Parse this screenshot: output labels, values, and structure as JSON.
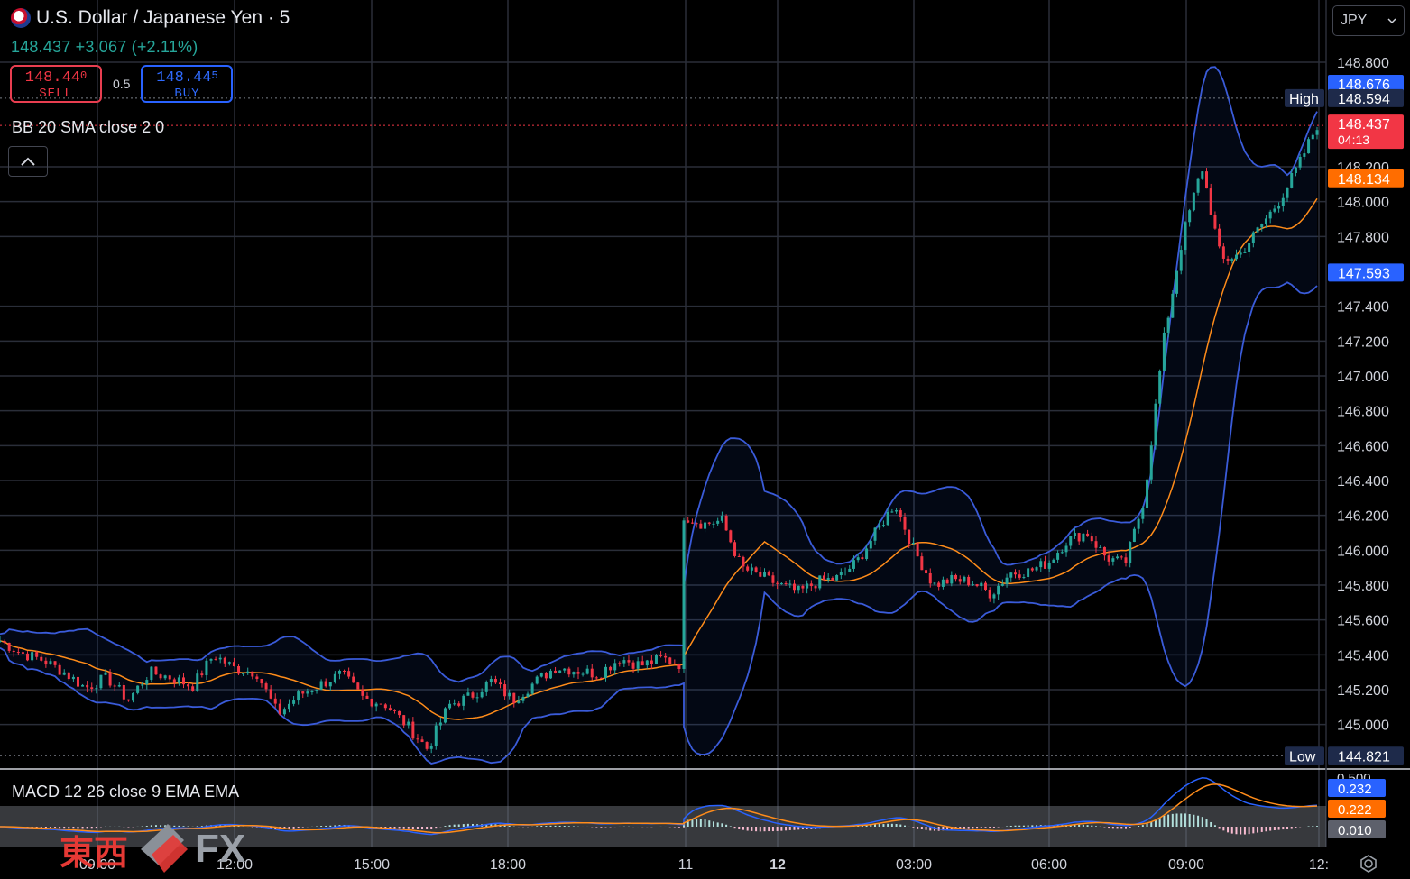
{
  "header": {
    "title": "U.S. Dollar / Japanese Yen · 5",
    "last": "148.437",
    "change": "+3.067",
    "change_pct": "(+2.11%)"
  },
  "trade": {
    "sell_price": "148.44",
    "sell_price_small": "0",
    "sell_label": "SELL",
    "spread": "0.5",
    "buy_price": "148.44",
    "buy_price_small": "5",
    "buy_label": "BUY"
  },
  "indicators": {
    "bb_label": "BB 20 SMA close 2 0",
    "macd_label": "MACD 12 26 close 9 EMA EMA"
  },
  "currency_select": "JPY",
  "watermark": {
    "jp": "東西",
    "fx": "FX"
  },
  "colors": {
    "up": "#26a69a",
    "down": "#f23645",
    "bb_band": "#3a5bd9",
    "bb_basis": "#ff8c1a",
    "macd": "#2962ff",
    "signal": "#ff8c1a",
    "high_low_bg": "#1e2a4a",
    "last_price": "#f23645"
  },
  "chart_data": {
    "type": "candlestick",
    "symbol": "USDJPY",
    "interval": "5",
    "x_labels": [
      "09:00",
      "12:00",
      "15:00",
      "18:00",
      "11",
      "12",
      "03:00",
      "06:00",
      "09:00",
      "12:"
    ],
    "y_ticks": [
      "148.800",
      "148.200",
      "148.000",
      "147.800",
      "147.400",
      "147.200",
      "147.000",
      "146.800",
      "146.600",
      "146.400",
      "146.200",
      "146.000",
      "145.800",
      "145.600",
      "145.400",
      "145.200",
      "145.000"
    ],
    "ylim": [
      144.75,
      148.95
    ],
    "price_badges": [
      {
        "label": "",
        "value": "148.676",
        "color": "#2962ff"
      },
      {
        "label": "High",
        "value": "148.594",
        "color": "#1e2a4a"
      },
      {
        "label": "",
        "value": "148.437",
        "sub": "04:13",
        "color": "#f23645"
      },
      {
        "label": "",
        "value": "148.134",
        "color": "#ff6d00"
      },
      {
        "label": "",
        "value": "147.593",
        "color": "#2962ff"
      },
      {
        "label": "Low",
        "value": "144.821",
        "color": "#1e2a4a"
      }
    ],
    "high": 148.594,
    "low": 144.821,
    "last": 148.437,
    "segments": [
      {
        "from_x": 0,
        "to_x": 758,
        "values": [
          145.48,
          145.41,
          145.37,
          145.3,
          145.21,
          145.27,
          145.14,
          145.3,
          145.27,
          145.22,
          145.4,
          145.32,
          145.3,
          145.06,
          145.17,
          145.23,
          145.29,
          145.15,
          145.12,
          145.0,
          144.86,
          145.11,
          145.16,
          145.25,
          145.14,
          145.24,
          145.33,
          145.31,
          145.29,
          145.38,
          145.34,
          145.38,
          145.34
        ]
      },
      {
        "from_x": 758,
        "to_x": 1460,
        "values": [
          146.2,
          146.15,
          146.17,
          145.9,
          145.85,
          145.8,
          145.76,
          145.82,
          145.84,
          145.93,
          146.1,
          146.27,
          146.0,
          145.8,
          145.83,
          145.82,
          145.75,
          145.87,
          145.88,
          145.93,
          146.06,
          146.1,
          145.96,
          145.92,
          146.3,
          147.2,
          147.8,
          148.2,
          147.66,
          147.7,
          147.85,
          148.0,
          148.2,
          148.44
        ]
      }
    ],
    "macd_ticks": [
      "0.500"
    ],
    "macd_badges": [
      {
        "value": "0.232",
        "color": "#2962ff"
      },
      {
        "value": "0.222",
        "color": "#ff6d00"
      },
      {
        "value": "0.010",
        "color": "#5d606b"
      }
    ]
  }
}
